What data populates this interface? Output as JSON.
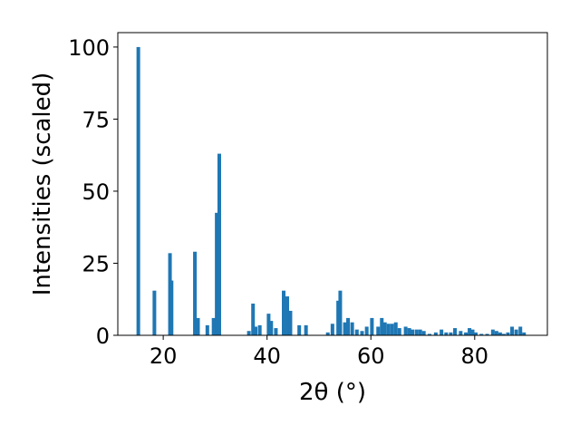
{
  "chart_data": {
    "type": "bar",
    "xlabel": "2θ (°)",
    "ylabel": "Intensities (scaled)",
    "xlim": [
      11.25,
      94.0
    ],
    "ylim": [
      0,
      105
    ],
    "xticks": [
      20,
      40,
      60,
      80
    ],
    "yticks": [
      0,
      25,
      50,
      75,
      100
    ],
    "bar_width_deg": 0.7,
    "bar_color": "#1f77b4",
    "grid": false,
    "legend": "none",
    "x": [
      15.2,
      18.3,
      21.3,
      21.6,
      26.1,
      26.7,
      28.5,
      29.7,
      30.3,
      30.8,
      36.5,
      37.3,
      37.8,
      38.6,
      40.3,
      40.8,
      41.7,
      43.2,
      43.9,
      44.5,
      46.2,
      47.5,
      51.7,
      52.6,
      53.7,
      54.1,
      55.0,
      55.6,
      56.4,
      57.3,
      58.3,
      59.2,
      60.2,
      61.4,
      62.1,
      62.7,
      63.4,
      64.1,
      64.8,
      65.5,
      66.7,
      67.4,
      68.0,
      68.8,
      69.5,
      70.2,
      71.3,
      72.5,
      73.6,
      74.5,
      75.4,
      76.2,
      77.3,
      78.3,
      79.0,
      79.6,
      80.2,
      81.3,
      82.4,
      83.5,
      84.2,
      84.9,
      85.6,
      86.4,
      87.2,
      88.0,
      88.8,
      89.5
    ],
    "values": [
      100,
      15.5,
      28.5,
      19,
      29,
      6,
      3.5,
      6,
      42.5,
      63,
      1.5,
      11,
      3,
      3.5,
      7.5,
      5,
      2.5,
      15.5,
      13.5,
      8.5,
      3.5,
      3.5,
      1,
      4,
      12,
      15.5,
      4.5,
      6,
      4.5,
      2,
      1.5,
      3,
      6,
      3,
      6,
      4.5,
      4,
      4,
      4.5,
      2.5,
      3,
      2.5,
      2,
      2,
      2,
      1.5,
      0.5,
      1,
      2,
      1,
      1,
      2.5,
      1.5,
      1,
      2.5,
      2,
      1,
      0.5,
      0.5,
      2,
      1.5,
      1,
      0.5,
      1,
      3,
      2,
      3,
      1
    ]
  }
}
